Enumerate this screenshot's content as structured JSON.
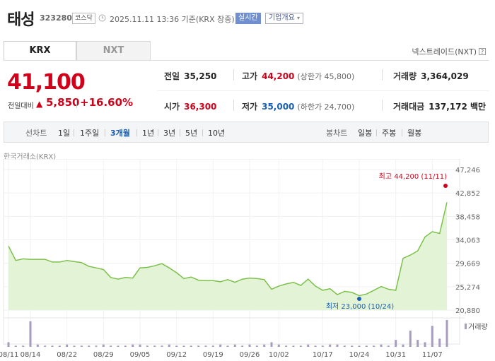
{
  "header": {
    "stock_name": "태성",
    "stock_code": "323280",
    "market": "코스닥",
    "datetime": "2025.11.11 13:36 기준(KRX 장중)",
    "realtime_label": "실시간",
    "company_button": "기업개요"
  },
  "tabs": [
    {
      "label": "KRX",
      "active": true
    },
    {
      "label": "NXT",
      "active": false
    }
  ],
  "nxt_link": "넥스트레이드(NXT)",
  "price": {
    "current": "41,100",
    "change_label": "전일대비",
    "change_amount": "5,850",
    "change_pct": "+16.60%"
  },
  "stats": {
    "prev_close": {
      "label": "전일",
      "value": "35,250"
    },
    "high": {
      "label": "고가",
      "value": "44,200",
      "sub": "(상한가 45,800)"
    },
    "volume": {
      "label": "거래량",
      "value": "3,364,029"
    },
    "open": {
      "label": "시가",
      "value": "36,300"
    },
    "low": {
      "label": "저가",
      "value": "35,000",
      "sub": "(하한가 24,700)"
    },
    "amount": {
      "label": "거래대금",
      "value": "137,172 백만"
    }
  },
  "period_bar": {
    "line_label": "선차트",
    "line_periods": [
      "1일",
      "1주일",
      "3개월",
      "1년",
      "3년",
      "5년",
      "10년"
    ],
    "active_period": "3개월",
    "candle_label": "봉차트",
    "candle_periods": [
      "일봉",
      "주봉",
      "월봉"
    ]
  },
  "exchange_label": "한국거래소(KRX)",
  "colors": {
    "up": "#d0021b",
    "down": "#1a5fb4",
    "line": "#7cc04b",
    "area": "#e3f3d6",
    "volume_bar": "#a79bc0",
    "active_tab": "#1a5fb4"
  },
  "chart_data": {
    "type": "area",
    "x": [
      "08/11",
      "08/12",
      "08/13",
      "08/14",
      "08/18",
      "08/19",
      "08/20",
      "08/21",
      "08/22",
      "08/25",
      "08/26",
      "08/27",
      "08/28",
      "08/29",
      "09/01",
      "09/02",
      "09/03",
      "09/04",
      "09/05",
      "09/08",
      "09/09",
      "09/10",
      "09/11",
      "09/12",
      "09/15",
      "09/16",
      "09/17",
      "09/18",
      "09/19",
      "09/22",
      "09/23",
      "09/24",
      "09/25",
      "09/26",
      "09/29",
      "09/30",
      "10/01",
      "10/02",
      "10/10",
      "10/13",
      "10/14",
      "10/15",
      "10/16",
      "10/17",
      "10/20",
      "10/21",
      "10/22",
      "10/23",
      "10/24",
      "10/27",
      "10/28",
      "10/29",
      "10/30",
      "10/31",
      "11/03",
      "11/04",
      "11/05",
      "11/06",
      "11/07",
      "11/10",
      "11/11"
    ],
    "y": [
      32900,
      30200,
      30500,
      30400,
      30400,
      30400,
      29900,
      29900,
      30200,
      30000,
      29800,
      29100,
      28800,
      28500,
      27000,
      26700,
      27000,
      26900,
      28800,
      28900,
      29200,
      29600,
      28800,
      27900,
      26800,
      27100,
      26500,
      26400,
      26400,
      26200,
      26600,
      26100,
      26700,
      26900,
      26800,
      26600,
      24800,
      25400,
      25800,
      26100,
      25500,
      26700,
      25400,
      24600,
      24900,
      23800,
      24400,
      24200,
      23600,
      23900,
      24600,
      25300,
      24800,
      24600,
      30600,
      31200,
      32000,
      34600,
      35600,
      35250,
      41100
    ],
    "volume": [
      4,
      1,
      1,
      22,
      2,
      1,
      1,
      1,
      2,
      1,
      1,
      1,
      1,
      2,
      1,
      1,
      1,
      2,
      2,
      1,
      1,
      1,
      2,
      1,
      1,
      1,
      1,
      1,
      1,
      2,
      1,
      2,
      1,
      2,
      1,
      2,
      4,
      2,
      1,
      1,
      1,
      2,
      1,
      1,
      2,
      2,
      1,
      1,
      1,
      1,
      1,
      2,
      1,
      6,
      2,
      14,
      6,
      4,
      18,
      7,
      23
    ],
    "x_ticks": [
      "08/11",
      "08/14",
      "08/22",
      "08/29",
      "09/05",
      "09/12",
      "09/19",
      "09/26",
      "10/02",
      "10/17",
      "10/24",
      "10/31",
      "11/07"
    ],
    "y_ticks": [
      "47,246",
      "42,852",
      "38,458",
      "34,063",
      "29,669",
      "25,274",
      "20,880"
    ],
    "ylim": [
      20880,
      47246
    ],
    "high_marker": {
      "label": "최고 44,200 (11/11)",
      "value": 44200
    },
    "low_marker": {
      "label": "최저 23,000 (10/24)",
      "value": 23000
    },
    "volume_legend": "거래량"
  }
}
